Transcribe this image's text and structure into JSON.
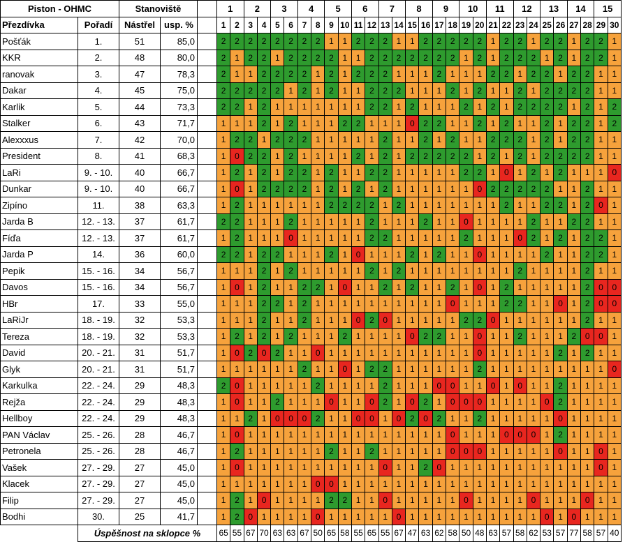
{
  "title": "Piston - OHMC",
  "header": {
    "stanoviste": "Stanoviště",
    "prezdivka": "Přezdívka",
    "poradi": "Pořadí",
    "nastrel": "Nástřel",
    "uspesnost": "usp. %"
  },
  "stations": [
    "1",
    "2",
    "3",
    "4",
    "5",
    "6",
    "7",
    "8",
    "9",
    "10",
    "11",
    "12",
    "13",
    "14",
    "15"
  ],
  "columns": [
    "1",
    "2",
    "3",
    "4",
    "5",
    "6",
    "7",
    "8",
    "9",
    "10",
    "11",
    "12",
    "13",
    "14",
    "15",
    "16",
    "17",
    "18",
    "19",
    "20",
    "21",
    "22",
    "23",
    "24",
    "25",
    "26",
    "27",
    "28",
    "29",
    "30"
  ],
  "colors": {
    "2": "#2e9b2e",
    "1": "#f6a23c",
    "0": "#e8261f"
  },
  "rows": [
    {
      "name": "Pošťák",
      "rank": "1.",
      "hits": "51",
      "pct": "85,0",
      "cells": "222222221122211222221221221221"
    },
    {
      "name": "KKR",
      "rank": "2.",
      "hits": "48",
      "pct": "80,0",
      "cells": "212212222112222222121222121221"
    },
    {
      "name": "ranovak",
      "rank": "3.",
      "hits": "47",
      "pct": "78,3",
      "cells": "211222212122211121112212212211"
    },
    {
      "name": "Dakar",
      "rank": "4.",
      "hits": "45",
      "pct": "75,0",
      "cells": "222221212112221112121121222211"
    },
    {
      "name": "Karlik",
      "rank": "5.",
      "hits": "44",
      "pct": "73,3",
      "cells": "221211111112212111212122221212"
    },
    {
      "name": "Stalker",
      "rank": "6.",
      "hits": "43",
      "pct": "71,7",
      "cells": "111212111221110221121211212212"
    },
    {
      "name": "Alexxxus",
      "rank": "7.",
      "hits": "42",
      "pct": "70,0",
      "cells": "122122211111211212112221212211"
    },
    {
      "name": "President",
      "rank": "8.",
      "hits": "41",
      "pct": "68,3",
      "cells": "102212111121212222212121222211"
    },
    {
      "name": "LaRi",
      "rank": "9. - 10.",
      "hits": "40",
      "pct": "66,7",
      "cells": "121212212112211111221012121110"
    },
    {
      "name": "Dunkar",
      "rank": "9. - 10.",
      "hits": "40",
      "pct": "66,7",
      "cells": "101222212121211111102222211211"
    },
    {
      "name": "Zipíno",
      "rank": "11.",
      "hits": "38",
      "pct": "63,3",
      "cells": "121111112222121111111211221201"
    },
    {
      "name": "Jarda B",
      "rank": "12. - 13.",
      "hits": "37",
      "pct": "61,7",
      "cells": "221112111112111211011112112211"
    },
    {
      "name": "Fíďa",
      "rank": "12. - 13.",
      "hits": "37",
      "pct": "61,7",
      "cells": "121110111112211111211102121221"
    },
    {
      "name": "Jarda P",
      "rank": "14.",
      "hits": "36",
      "pct": "60,0",
      "cells": "221221112101112121101111211221"
    },
    {
      "name": "Pepik",
      "rank": "15. - 16.",
      "hits": "34",
      "pct": "56,7",
      "cells": "111212111112121111111121111211"
    },
    {
      "name": "Davos",
      "rank": "15. - 16.",
      "hits": "34",
      "pct": "56,7",
      "cells": "101211221011212112101211111200"
    },
    {
      "name": "HBr",
      "rank": "17.",
      "hits": "33",
      "pct": "55,0",
      "cells": "111221211111111110111221101200"
    },
    {
      "name": "LaRiJr",
      "rank": "18. - 19.",
      "hits": "32",
      "pct": "53,3",
      "cells": "111211211102011111220111111211"
    },
    {
      "name": "Tereza",
      "rank": "18. - 19.",
      "hits": "32",
      "pct": "53,3",
      "cells": "121212111211110221101121112001"
    },
    {
      "name": "David",
      "rank": "20. - 21.",
      "hits": "31",
      "pct": "51,7",
      "cells": "102021101111111111101111121211"
    },
    {
      "name": "Glyk",
      "rank": "20. - 21.",
      "hits": "31",
      "pct": "51,7",
      "cells": "111111211012211111121111111110"
    },
    {
      "name": "Karkulka",
      "rank": "22. - 24.",
      "hits": "29",
      "pct": "48,3",
      "cells": "201111121111211100110101121111"
    },
    {
      "name": "Rejža",
      "rank": "22. - 24.",
      "hits": "29",
      "pct": "48,3",
      "cells": "101121110110210210001111021111"
    },
    {
      "name": "Hellboy",
      "rank": "22. - 24.",
      "hits": "29",
      "pct": "48,3",
      "cells": "112100021100102021121111101111"
    },
    {
      "name": "PAN Václav",
      "rank": "25. - 26.",
      "hits": "28",
      "pct": "46,7",
      "cells": "101111111111111110111000121111"
    },
    {
      "name": "Petronela",
      "rank": "25. - 26.",
      "hits": "28",
      "pct": "46,7",
      "cells": "121111112112111110001111101101"
    },
    {
      "name": "Vašek",
      "rank": "27. - 29.",
      "hits": "27",
      "pct": "45,0",
      "cells": "101111111111011201111111111101"
    },
    {
      "name": "Klacek",
      "rank": "27. - 29.",
      "hits": "27",
      "pct": "45,0",
      "cells": "111111100111111111111111111111"
    },
    {
      "name": "Filip",
      "rank": "27. - 29.",
      "hits": "27",
      "pct": "45,0",
      "cells": "121011112211011111011110111011"
    },
    {
      "name": "Bodhi",
      "rank": "30.",
      "hits": "25",
      "pct": "41,7",
      "cells": "120111101111101111111111010111"
    }
  ],
  "footer": {
    "label": "Úspěšnost na sklopce  %",
    "values": [
      "65",
      "55",
      "67",
      "70",
      "63",
      "63",
      "67",
      "50",
      "65",
      "58",
      "55",
      "65",
      "55",
      "67",
      "47",
      "63",
      "62",
      "58",
      "50",
      "48",
      "63",
      "57",
      "58",
      "62",
      "53",
      "57",
      "77",
      "58",
      "57",
      "40"
    ]
  }
}
